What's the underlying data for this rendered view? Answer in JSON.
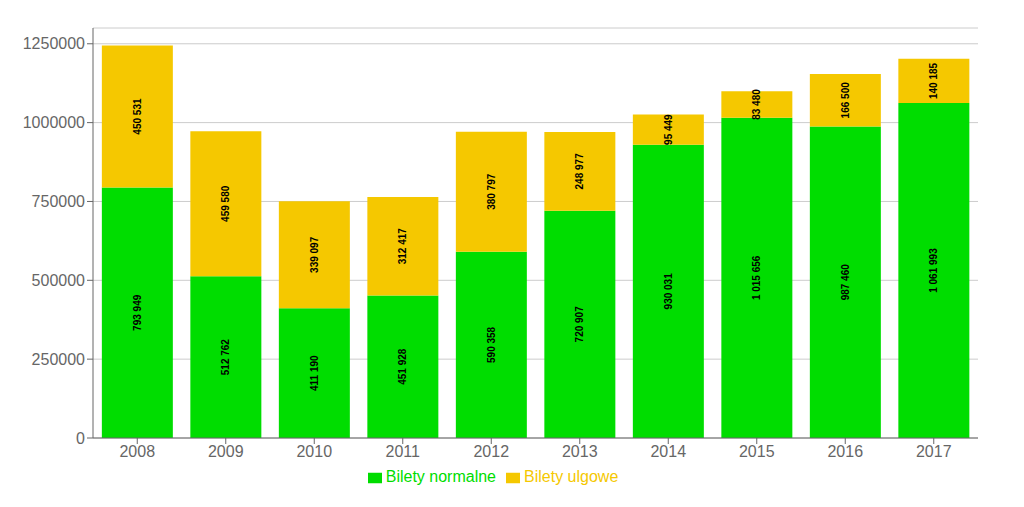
{
  "chart_data": {
    "type": "bar",
    "stacked": true,
    "data_labels": true,
    "grid": true,
    "legend": "bottom",
    "categories": [
      "2008",
      "2009",
      "2010",
      "2011",
      "2012",
      "2013",
      "2014",
      "2015",
      "2016",
      "2017"
    ],
    "series": [
      {
        "name": "Bilety normalne",
        "color": "#00dd00",
        "values": [
          793949,
          512762,
          411190,
          451928,
          590358,
          720907,
          930031,
          1015656,
          987460,
          1061993
        ],
        "value_labels": [
          "793 949",
          "512 762",
          "411 190",
          "451 928",
          "590 358",
          "720 907",
          "930 031",
          "1 015 656",
          "987 460",
          "1 061 993"
        ]
      },
      {
        "name": "Bilety ulgowe",
        "color": "#f5c800",
        "values": [
          450531,
          459580,
          339097,
          312417,
          380797,
          248977,
          95449,
          83480,
          166500,
          140185
        ],
        "value_labels": [
          "450 531",
          "459 580",
          "339 097",
          "312 417",
          "380 797",
          "248 977",
          "95 449",
          "83 480",
          "166 500",
          "140 185"
        ]
      }
    ],
    "ylim": [
      0,
      1300000
    ],
    "yticks": [
      0,
      250000,
      500000,
      750000,
      1000000,
      1250000
    ]
  }
}
